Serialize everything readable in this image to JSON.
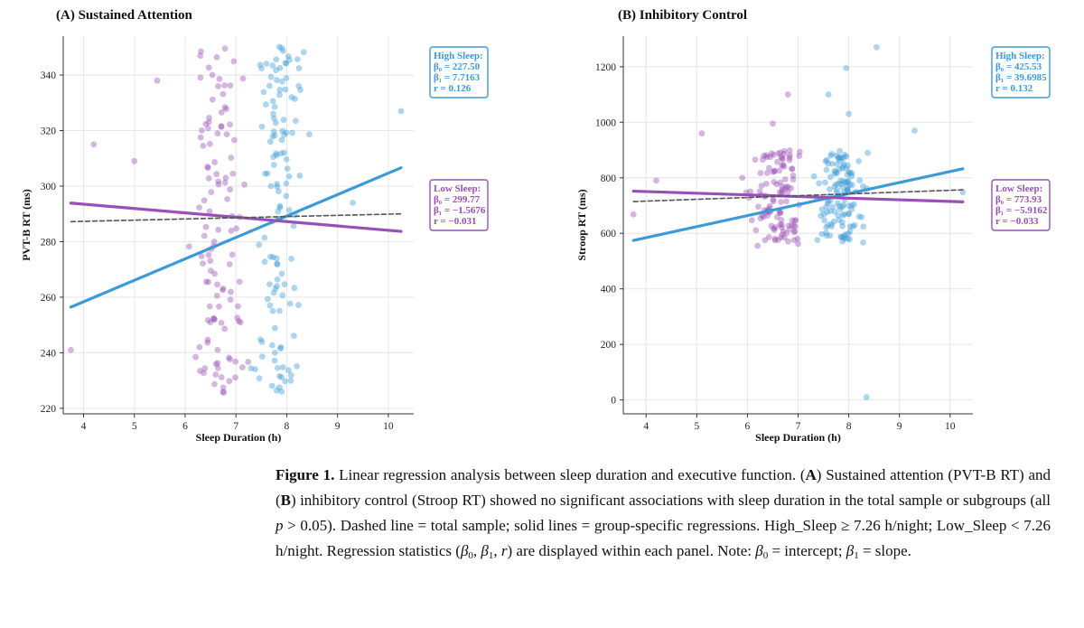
{
  "colors": {
    "high": "#3c9ad6",
    "low": "#9950b6",
    "total": "#555555",
    "axis": "#333333"
  },
  "caption": {
    "figure_label": "Figure 1.",
    "text_1": " Linear regression analysis between sleep duration and executive function. (",
    "label_a": "A",
    "text_2": ") Sustained attention (PVT-B RT) and (",
    "label_b": "B",
    "text_3": ") inhibitory control (Stroop RT) showed no significant associations with sleep duration in the total sample or subgroups (all ",
    "p_symbol": "p",
    "text_4": " > 0.05). Dashed line = total sample; solid lines = group-specific regressions. High_Sleep ≥ 7.26 h/night; Low_Sleep < 7.26 h/night. Regression statistics (",
    "beta": "β",
    "sub0": "0",
    "comma": ", ",
    "sub1": "1",
    "r_symbol": "r",
    "text_5": ") are displayed within each panel. Note: ",
    "text_6": " = intercept; ",
    "text_7": " = slope."
  },
  "chart_data": [
    {
      "type": "scatter",
      "title": "(A) Sustained Attention",
      "xlabel": "Sleep Duration (h)",
      "ylabel": "PVT-B RT (ms)",
      "xlim": [
        3.6,
        10.5
      ],
      "ylim": [
        218,
        354
      ],
      "xticks": [
        4,
        5,
        6,
        7,
        8,
        9,
        10
      ],
      "yticks": [
        220,
        240,
        260,
        280,
        300,
        320,
        340
      ],
      "threshold": 7.26,
      "seed": 17,
      "y_spread": {
        "low": [
          225,
          350
        ],
        "high": [
          225,
          351
        ]
      },
      "extra_points": [
        [
          3.75,
          241,
          "low"
        ],
        [
          10.25,
          327,
          "high"
        ],
        [
          4.2,
          315,
          "low"
        ],
        [
          5.0,
          309,
          "low"
        ],
        [
          5.45,
          338,
          "low"
        ],
        [
          9.3,
          294,
          "high"
        ],
        [
          7.9,
          226,
          "high"
        ]
      ],
      "series": [
        {
          "name": "High Sleep",
          "group": "high",
          "b0": 227.5,
          "b1": 7.7163,
          "r": 0.126,
          "x_range": [
            3.75,
            10.25
          ],
          "stat_lines": [
            "High Sleep:",
            "β₀ = 227.50",
            "β₁ = 7.7163",
            "r = 0.126"
          ]
        },
        {
          "name": "Low Sleep",
          "group": "low",
          "b0": 299.77,
          "b1": -1.5676,
          "r": -0.031,
          "x_range": [
            3.75,
            10.25
          ],
          "stat_lines": [
            "Low Sleep:",
            "β₀ = 299.77",
            "β₁ = −1.5676",
            "r = −0.031"
          ]
        },
        {
          "name": "Total",
          "group": "total",
          "b0": 285.6,
          "b1": 0.43,
          "x_range": [
            3.75,
            10.25
          ]
        }
      ]
    },
    {
      "type": "scatter",
      "title": "(B) Inhibitory Control",
      "xlabel": "Sleep Duration (h)",
      "ylabel": "Stroop RT (ms)",
      "xlim": [
        3.55,
        10.45
      ],
      "ylim": [
        -50,
        1310
      ],
      "xticks": [
        4,
        5,
        6,
        7,
        8,
        9,
        10
      ],
      "yticks": [
        0,
        200,
        400,
        600,
        800,
        1000,
        1200
      ],
      "threshold": 7.26,
      "seed": 29,
      "y_spread": {
        "low": [
          560,
          900
        ],
        "high": [
          560,
          900
        ]
      },
      "extra_points": [
        [
          3.75,
          668,
          "low"
        ],
        [
          4.2,
          790,
          "low"
        ],
        [
          5.1,
          960,
          "low"
        ],
        [
          6.5,
          995,
          "low"
        ],
        [
          6.8,
          1100,
          "low"
        ],
        [
          7.95,
          1195,
          "high"
        ],
        [
          8.55,
          1270,
          "high"
        ],
        [
          8.35,
          10,
          "high"
        ],
        [
          9.3,
          970,
          "high"
        ],
        [
          7.6,
          1100,
          "high"
        ],
        [
          8.0,
          1030,
          "high"
        ],
        [
          10.25,
          748,
          "high"
        ],
        [
          5.9,
          800,
          "low"
        ],
        [
          6.2,
          555,
          "low"
        ]
      ],
      "series": [
        {
          "name": "High Sleep",
          "group": "high",
          "b0": 425.53,
          "b1": 39.6985,
          "r": 0.132,
          "x_range": [
            3.75,
            10.25
          ],
          "stat_lines": [
            "High Sleep:",
            "β₀ = 425.53",
            "β₁ = 39.6985",
            "r = 0.132"
          ]
        },
        {
          "name": "Low Sleep",
          "group": "low",
          "b0": 773.93,
          "b1": -5.9162,
          "r": -0.033,
          "x_range": [
            3.75,
            10.25
          ],
          "stat_lines": [
            "Low Sleep:",
            "β₀ = 773.93",
            "β₁ = −5.9162",
            "r = −0.033"
          ]
        },
        {
          "name": "Total",
          "group": "total",
          "b0": 690.0,
          "b1": 6.5,
          "x_range": [
            3.75,
            10.25
          ]
        }
      ]
    }
  ]
}
